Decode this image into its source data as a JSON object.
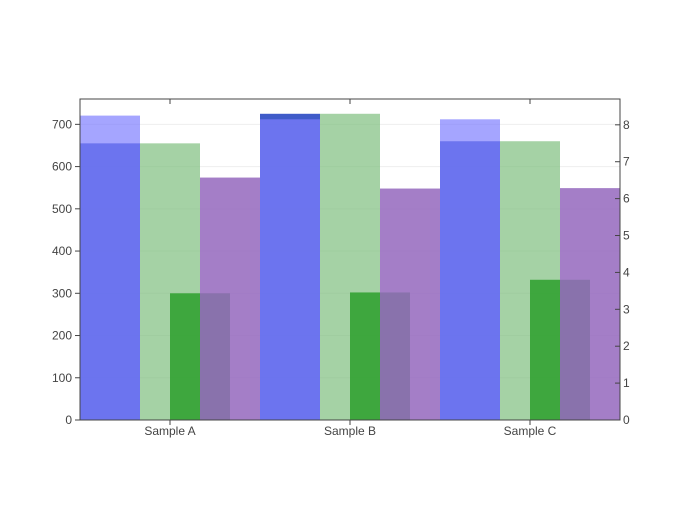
{
  "chart_data": {
    "type": "bar",
    "title": "",
    "xlabel": "",
    "ylabel": "",
    "y2label": "",
    "categories": [
      "Sample A",
      "Sample B",
      "Sample C"
    ],
    "ylim": [
      0,
      760
    ],
    "y2lim": [
      0,
      8.7
    ],
    "yticks": [
      0,
      100,
      200,
      300,
      400,
      500,
      600,
      700
    ],
    "y2ticks": [
      0,
      1,
      2,
      3,
      4,
      5,
      6,
      7,
      8
    ],
    "grid": true,
    "legend": "none",
    "series": [
      {
        "axis": "left",
        "color": "#1f3fbf",
        "values": [
          655,
          725,
          660
        ],
        "note": "opaque dark blue bars, column 1"
      },
      {
        "axis": "right",
        "color": "#7f7fff",
        "values": [
          8.25,
          8.15,
          8.15
        ],
        "note": "translucent light blue bars, column 1"
      },
      {
        "axis": "left",
        "color": "#7fbf7f",
        "values": [
          655,
          725,
          660
        ],
        "note": "translucent light green bars, column 2"
      },
      {
        "axis": "left",
        "color": "#2ca02c",
        "values": [
          300,
          302,
          332
        ],
        "note": "green bars, column 3"
      },
      {
        "axis": "left",
        "color": "#9467bd",
        "values": [
          574,
          548,
          549
        ],
        "note": "purple bars, column 4"
      }
    ]
  }
}
